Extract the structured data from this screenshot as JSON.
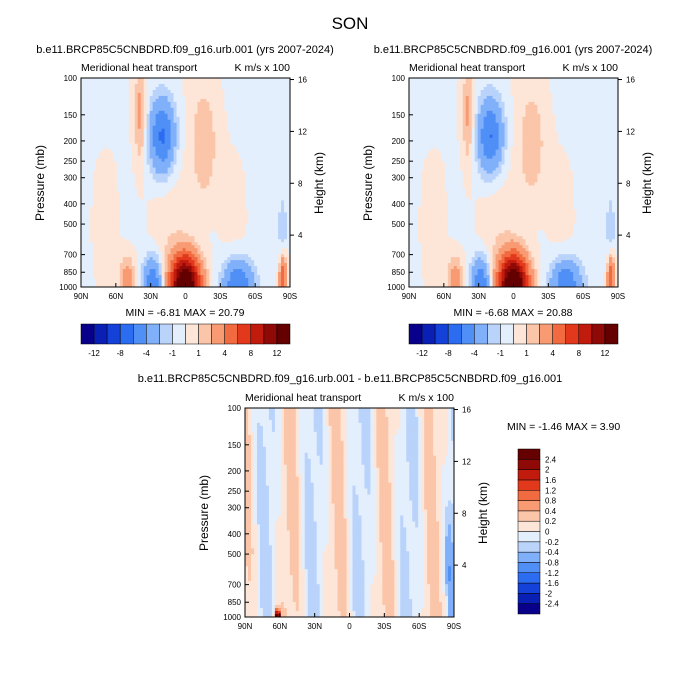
{
  "figure_title": "SON",
  "colors": {
    "ink": "#000000",
    "panel_bg": "#d3e4fb",
    "frame": "#000000"
  },
  "chart_data": [
    {
      "type": "heatmap",
      "title": "b.e11.BRCP85C5CNBDRD.f09_g16.urb.001 (yrs 2007-2024)",
      "left_label": "Meridional heat transport",
      "right_label": "K m/s x 100",
      "xlabel": "",
      "ylabel": "Pressure (mb)",
      "ylabel_right": "Height (km)",
      "x_ticks": [
        "90N",
        "60N",
        "30N",
        "0",
        "30S",
        "60S",
        "90S"
      ],
      "pressure_ticks": [
        100,
        150,
        200,
        250,
        300,
        400,
        500,
        700,
        850,
        1000
      ],
      "height_ticks": [
        16,
        12,
        8,
        4
      ],
      "stats": "MIN = -6.81  MAX = 20.79",
      "min": -6.81,
      "max": 20.79,
      "colorbar": {
        "orientation": "horizontal",
        "levels": [
          -12,
          -10,
          -8,
          -6,
          -4,
          -2,
          -1,
          0,
          1,
          2,
          4,
          6,
          8,
          10,
          12
        ],
        "tick_labels": [
          "-12",
          "-8",
          "-4",
          "-1",
          "1",
          "4",
          "8",
          "12"
        ],
        "colors": [
          "#08008a",
          "#0a1fb4",
          "#1441d8",
          "#2c6cf0",
          "#4f8ff6",
          "#80b0fa",
          "#b9d3fb",
          "#e4effd",
          "#fde6d8",
          "#fbc5a9",
          "#f89a72",
          "#f26a3f",
          "#e2391d",
          "#c11b0e",
          "#8f0a06",
          "#640000"
        ]
      },
      "features": [
        {
          "lat": 20,
          "p": 190,
          "value": -6.5,
          "lat_sd": 8,
          "logp_sd": 0.13
        },
        {
          "lat": 39,
          "p": 150,
          "value": 2.6,
          "lat_sd": 3.5,
          "logp_sd": 0.17
        },
        {
          "lat": -16,
          "p": 210,
          "value": 2.0,
          "lat_sd": 8,
          "logp_sd": 0.2
        },
        {
          "lat": 0,
          "p": 980,
          "value": 16,
          "lat_sd": 9,
          "logp_sd": 0.1
        },
        {
          "lat": 28,
          "p": 970,
          "value": -6,
          "lat_sd": 6,
          "logp_sd": 0.09
        },
        {
          "lat": 50,
          "p": 920,
          "value": 3,
          "lat_sd": 5,
          "logp_sd": 0.08
        },
        {
          "lat": -45,
          "p": 960,
          "value": -6,
          "lat_sd": 9,
          "logp_sd": 0.08
        },
        {
          "lat": -84,
          "p": 930,
          "value": 7,
          "lat_sd": 2.5,
          "logp_sd": 0.1
        },
        {
          "lat": -84,
          "p": 620,
          "value": -2,
          "lat_sd": 3,
          "logp_sd": 0.15
        },
        {
          "lat": 15,
          "p": 520,
          "value": 0.5,
          "lat_sd": 25,
          "logp_sd": 0.5
        }
      ]
    },
    {
      "type": "heatmap",
      "title": "b.e11.BRCP85C5CNBDRD.f09_g16.001 (yrs 2007-2024)",
      "left_label": "Meridional heat transport",
      "right_label": "K m/s x 100",
      "xlabel": "",
      "ylabel": "Pressure (mb)",
      "ylabel_right": "Height (km)",
      "x_ticks": [
        "90N",
        "60N",
        "30N",
        "0",
        "30S",
        "60S",
        "90S"
      ],
      "pressure_ticks": [
        100,
        150,
        200,
        250,
        300,
        400,
        500,
        700,
        850,
        1000
      ],
      "height_ticks": [
        16,
        12,
        8,
        4
      ],
      "stats": "MIN = -6.68  MAX = 20.88",
      "min": -6.68,
      "max": 20.88,
      "colorbar": {
        "orientation": "horizontal",
        "levels": [
          -12,
          -10,
          -8,
          -6,
          -4,
          -2,
          -1,
          0,
          1,
          2,
          4,
          6,
          8,
          10,
          12
        ],
        "tick_labels": [
          "-12",
          "-8",
          "-4",
          "-1",
          "1",
          "4",
          "8",
          "12"
        ],
        "colors": [
          "#08008a",
          "#0a1fb4",
          "#1441d8",
          "#2c6cf0",
          "#4f8ff6",
          "#80b0fa",
          "#b9d3fb",
          "#e4effd",
          "#fde6d8",
          "#fbc5a9",
          "#f89a72",
          "#f26a3f",
          "#e2391d",
          "#c11b0e",
          "#8f0a06",
          "#640000"
        ]
      },
      "features": [
        {
          "lat": 20,
          "p": 190,
          "value": -6.3,
          "lat_sd": 8,
          "logp_sd": 0.13
        },
        {
          "lat": 39,
          "p": 150,
          "value": 2.5,
          "lat_sd": 3.5,
          "logp_sd": 0.17
        },
        {
          "lat": -16,
          "p": 210,
          "value": 1.9,
          "lat_sd": 8,
          "logp_sd": 0.2
        },
        {
          "lat": 0,
          "p": 980,
          "value": 16.2,
          "lat_sd": 9,
          "logp_sd": 0.1
        },
        {
          "lat": 28,
          "p": 970,
          "value": -6,
          "lat_sd": 6,
          "logp_sd": 0.09
        },
        {
          "lat": 50,
          "p": 920,
          "value": 3,
          "lat_sd": 5,
          "logp_sd": 0.08
        },
        {
          "lat": -45,
          "p": 960,
          "value": -5.8,
          "lat_sd": 9,
          "logp_sd": 0.08
        },
        {
          "lat": -84,
          "p": 930,
          "value": 7,
          "lat_sd": 2.5,
          "logp_sd": 0.1
        },
        {
          "lat": -84,
          "p": 620,
          "value": -2,
          "lat_sd": 3,
          "logp_sd": 0.15
        },
        {
          "lat": 15,
          "p": 520,
          "value": 0.5,
          "lat_sd": 25,
          "logp_sd": 0.5
        }
      ]
    },
    {
      "type": "heatmap",
      "title": "b.e11.BRCP85C5CNBDRD.f09_g16.urb.001 - b.e11.BRCP85C5CNBDRD.f09_g16.001",
      "left_label": "Meridional heat transport",
      "right_label": "K m/s x 100",
      "xlabel": "",
      "ylabel": "Pressure (mb)",
      "ylabel_right": "Height (km)",
      "x_ticks": [
        "90N",
        "60N",
        "30N",
        "0",
        "30S",
        "60S",
        "90S"
      ],
      "pressure_ticks": [
        100,
        150,
        200,
        250,
        300,
        400,
        500,
        700,
        850,
        1000
      ],
      "height_ticks": [
        16,
        12,
        8,
        4
      ],
      "stats": "MIN =  -1.46  MAX =   3.90",
      "min": -1.46,
      "max": 3.9,
      "colorbar": {
        "orientation": "vertical",
        "levels": [
          -2.4,
          -2,
          -1.6,
          -1.2,
          -0.8,
          -0.4,
          -0.2,
          0,
          0.2,
          0.4,
          0.8,
          1.2,
          1.6,
          2,
          2.4
        ],
        "tick_labels": [
          "-2.4",
          "-2",
          "-1.6",
          "-1.2",
          "-0.8",
          "-0.4",
          "-0.2",
          "0",
          "0.2",
          "0.4",
          "0.8",
          "1.2",
          "1.6",
          "2",
          "2.4"
        ],
        "colors": [
          "#08008a",
          "#0a1fb4",
          "#1441d8",
          "#2c6cf0",
          "#4f8ff6",
          "#80b0fa",
          "#b9d3fb",
          "#e4effd",
          "#fde6d8",
          "#fbc5a9",
          "#f89a72",
          "#f26a3f",
          "#e2391d",
          "#c11b0e",
          "#8f0a06",
          "#640000"
        ]
      },
      "features": [
        {
          "lat": 62,
          "p": 990,
          "value": 3.5,
          "lat_sd": 1.5,
          "logp_sd": 0.02
        },
        {
          "lat": -86,
          "p": 650,
          "value": -0.6,
          "lat_sd": 2.5,
          "logp_sd": 0.2
        },
        {
          "lat": -84,
          "p": 900,
          "value": 0.4,
          "lat_sd": 2,
          "logp_sd": 0.08
        }
      ]
    }
  ]
}
